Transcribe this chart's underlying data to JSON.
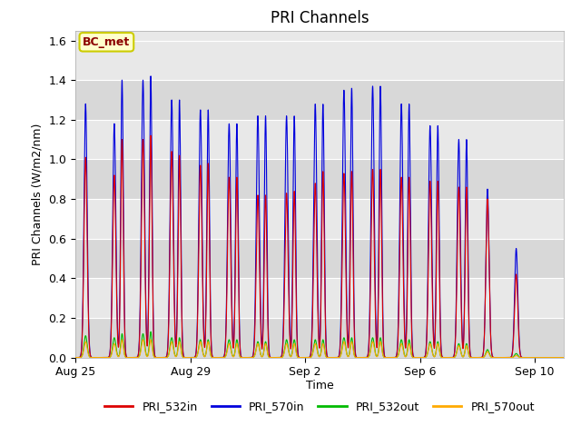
{
  "title": "PRI Channels",
  "ylabel": "PRI Channels (W/m2/nm)",
  "xlabel": "Time",
  "ylim": [
    0,
    1.65
  ],
  "yticks": [
    0.0,
    0.2,
    0.4,
    0.6,
    0.8,
    1.0,
    1.2,
    1.4,
    1.6
  ],
  "fig_bg_color": "#ffffff",
  "plot_bg_color": "#e8e8e8",
  "annotation_text": "BC_met",
  "annotation_bg": "#ffffcc",
  "annotation_border": "#cccc00",
  "series_colors": {
    "PRI_532in": "#dd0000",
    "PRI_570in": "#0000dd",
    "PRI_532out": "#00bb00",
    "PRI_570out": "#ffaa00"
  },
  "legend_labels": [
    "PRI_532in",
    "PRI_570in",
    "PRI_532out",
    "PRI_570out"
  ],
  "legend_colors": [
    "#dd0000",
    "#0000dd",
    "#00bb00",
    "#ffaa00"
  ],
  "xticklabels": [
    "Aug 25",
    "Aug 29",
    "Sep 2",
    "Sep 6",
    "Sep 10"
  ],
  "n_days": 17,
  "peaks_532in_am": [
    1.01,
    0.92,
    1.1,
    1.04,
    0.97,
    0.91,
    0.82,
    0.83,
    0.88,
    0.93,
    0.95,
    0.91,
    0.89,
    0.86,
    0.8,
    0.42,
    0.0
  ],
  "peaks_532in_pm": [
    0.0,
    1.1,
    1.12,
    1.02,
    0.98,
    0.91,
    0.82,
    0.84,
    0.94,
    0.94,
    0.95,
    0.91,
    0.89,
    0.86,
    0.0,
    0.0,
    0.0
  ],
  "peaks_570in_am": [
    1.28,
    1.18,
    1.4,
    1.3,
    1.25,
    1.18,
    1.22,
    1.22,
    1.28,
    1.35,
    1.37,
    1.28,
    1.17,
    1.1,
    0.85,
    0.55,
    0.0
  ],
  "peaks_570in_pm": [
    0.0,
    1.4,
    1.42,
    1.3,
    1.25,
    1.18,
    1.22,
    1.22,
    1.28,
    1.36,
    1.37,
    1.28,
    1.17,
    1.1,
    0.0,
    0.0,
    0.0
  ],
  "peaks_532out_am": [
    0.11,
    0.1,
    0.12,
    0.1,
    0.09,
    0.09,
    0.08,
    0.09,
    0.09,
    0.1,
    0.1,
    0.09,
    0.08,
    0.07,
    0.04,
    0.02,
    0.0
  ],
  "peaks_532out_pm": [
    0.0,
    0.12,
    0.13,
    0.1,
    0.09,
    0.09,
    0.08,
    0.09,
    0.09,
    0.1,
    0.1,
    0.09,
    0.08,
    0.07,
    0.0,
    0.0,
    0.0
  ],
  "peaks_570out_am": [
    0.08,
    0.07,
    0.09,
    0.08,
    0.08,
    0.07,
    0.07,
    0.07,
    0.07,
    0.08,
    0.08,
    0.07,
    0.07,
    0.06,
    0.03,
    0.01,
    0.0
  ],
  "peaks_570out_pm": [
    0.0,
    0.09,
    0.09,
    0.08,
    0.08,
    0.07,
    0.07,
    0.07,
    0.07,
    0.08,
    0.08,
    0.07,
    0.07,
    0.06,
    0.0,
    0.0,
    0.0
  ]
}
